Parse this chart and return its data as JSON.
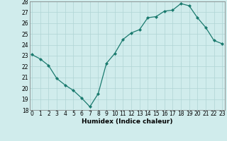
{
  "x": [
    0,
    1,
    2,
    3,
    4,
    5,
    6,
    7,
    8,
    9,
    10,
    11,
    12,
    13,
    14,
    15,
    16,
    17,
    18,
    19,
    20,
    21,
    22,
    23
  ],
  "y": [
    23.1,
    22.7,
    22.1,
    20.9,
    20.3,
    19.8,
    19.1,
    18.3,
    19.5,
    22.3,
    23.2,
    24.5,
    25.1,
    25.4,
    26.5,
    26.6,
    27.1,
    27.2,
    27.8,
    27.6,
    26.5,
    25.6,
    24.4,
    24.1
  ],
  "ylim": [
    18,
    28
  ],
  "xlim": [
    -0.3,
    23.3
  ],
  "yticks": [
    18,
    19,
    20,
    21,
    22,
    23,
    24,
    25,
    26,
    27,
    28
  ],
  "xticks": [
    0,
    1,
    2,
    3,
    4,
    5,
    6,
    7,
    8,
    9,
    10,
    11,
    12,
    13,
    14,
    15,
    16,
    17,
    18,
    19,
    20,
    21,
    22,
    23
  ],
  "xlabel": "Humidex (Indice chaleur)",
  "line_color": "#1a7a6e",
  "marker": "D",
  "marker_size": 2.0,
  "bg_color": "#d0ecec",
  "grid_color": "#b0d4d4",
  "tick_fontsize": 5.5,
  "xlabel_fontsize": 6.5
}
